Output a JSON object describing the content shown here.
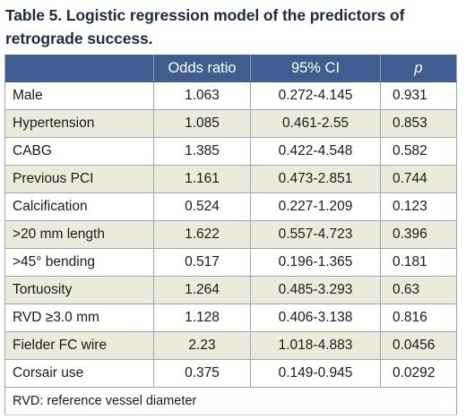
{
  "table": {
    "title": "Table 5. Logistic regression model of the predictors of retrograde success.",
    "headers": [
      "",
      "Odds ratio",
      "95% CI",
      "p"
    ],
    "rows": [
      [
        "Male",
        "1.063",
        "0.272-4.145",
        "0.931"
      ],
      [
        "Hypertension",
        "1.085",
        "0.461-2.55",
        "0.853"
      ],
      [
        "CABG",
        "1.385",
        "0.422-4.548",
        "0.582"
      ],
      [
        "Previous PCI",
        "1.161",
        "0.473-2.851",
        "0.744"
      ],
      [
        "Calcification",
        "0.524",
        "0.227-1.209",
        "0.123"
      ],
      [
        ">20 mm length",
        "1.622",
        "0.557-4.723",
        "0.396"
      ],
      [
        ">45° bending",
        "0.517",
        "0.196-1.365",
        "0.181"
      ],
      [
        "Tortuosity",
        "1.264",
        "0.485-3.293",
        "0.63"
      ],
      [
        "RVD ≥3.0 mm",
        "1.128",
        "0.406-3.138",
        "0.816"
      ],
      [
        "Fielder FC wire",
        "2.23",
        "1.018-4.883",
        "0.0456"
      ],
      [
        "Corsair use",
        "0.375",
        "0.149-0.945",
        "0.0292"
      ]
    ],
    "footnote": "RVD: reference vessel diameter"
  },
  "colors": {
    "header_bg": "#3f5d8e",
    "stripe_bg": "#eceadb",
    "title_color": "#1e2a44"
  }
}
